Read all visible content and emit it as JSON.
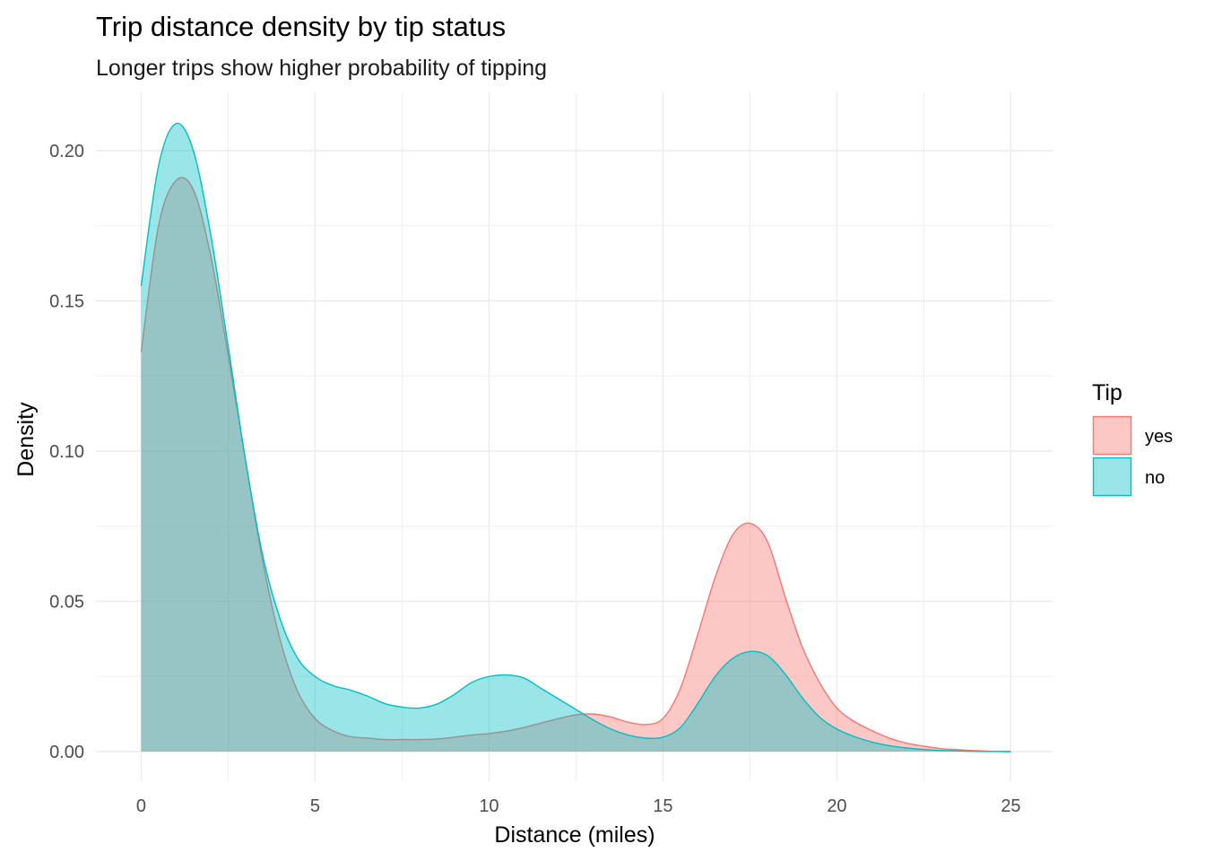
{
  "chart_data": {
    "type": "area",
    "title": "Trip distance density by tip status",
    "subtitle": "Longer trips show higher probability of tipping",
    "xlabel": "Distance (miles)",
    "ylabel": "Density",
    "xlim": [
      0,
      25
    ],
    "ylim": [
      0,
      0.21
    ],
    "x_ticks": [
      0,
      5,
      10,
      15,
      20,
      25
    ],
    "x_tick_labels": [
      "0",
      "5",
      "10",
      "15",
      "20",
      "25"
    ],
    "y_ticks": [
      0,
      0.05,
      0.1,
      0.15,
      0.2
    ],
    "y_tick_labels": [
      "0.00",
      "0.05",
      "0.10",
      "0.15",
      "0.20"
    ],
    "grid": true,
    "legend": {
      "title": "Tip",
      "position": "right"
    },
    "x": [
      0,
      0.5,
      1,
      1.5,
      2,
      2.5,
      3,
      3.5,
      4,
      4.5,
      5,
      5.5,
      6,
      6.5,
      7,
      7.5,
      8,
      8.5,
      9,
      9.5,
      10,
      10.5,
      11,
      11.5,
      12,
      12.5,
      13,
      13.5,
      14,
      14.5,
      15,
      15.5,
      16,
      16.5,
      17,
      17.5,
      18,
      18.5,
      19,
      19.5,
      20,
      20.5,
      21,
      21.5,
      22,
      22.5,
      23,
      23.5,
      24,
      24.5,
      25
    ],
    "series": [
      {
        "name": "yes",
        "color": "#F8766D",
        "fill": "#F8766D",
        "values": [
          0.133,
          0.175,
          0.19,
          0.187,
          0.165,
          0.132,
          0.097,
          0.063,
          0.037,
          0.02,
          0.011,
          0.007,
          0.005,
          0.0045,
          0.004,
          0.004,
          0.004,
          0.0042,
          0.0048,
          0.0055,
          0.006,
          0.0068,
          0.008,
          0.0095,
          0.011,
          0.0122,
          0.0125,
          0.0115,
          0.0098,
          0.009,
          0.011,
          0.021,
          0.039,
          0.058,
          0.072,
          0.076,
          0.07,
          0.052,
          0.035,
          0.023,
          0.0145,
          0.01,
          0.007,
          0.0045,
          0.0028,
          0.0018,
          0.001,
          0.0006,
          0.0003,
          0.0001,
          0
        ]
      },
      {
        "name": "no",
        "color": "#00BFC4",
        "fill": "#00BFC4",
        "values": [
          0.155,
          0.195,
          0.209,
          0.2,
          0.172,
          0.135,
          0.097,
          0.065,
          0.044,
          0.031,
          0.025,
          0.022,
          0.0205,
          0.0185,
          0.016,
          0.0148,
          0.0145,
          0.0158,
          0.019,
          0.023,
          0.025,
          0.0255,
          0.0245,
          0.021,
          0.0175,
          0.014,
          0.0105,
          0.0075,
          0.0055,
          0.0045,
          0.0048,
          0.008,
          0.016,
          0.025,
          0.031,
          0.0333,
          0.032,
          0.026,
          0.018,
          0.0115,
          0.0075,
          0.005,
          0.0032,
          0.002,
          0.0012,
          0.0007,
          0.0004,
          0.0002,
          0.0001,
          5e-05,
          0
        ]
      }
    ]
  }
}
